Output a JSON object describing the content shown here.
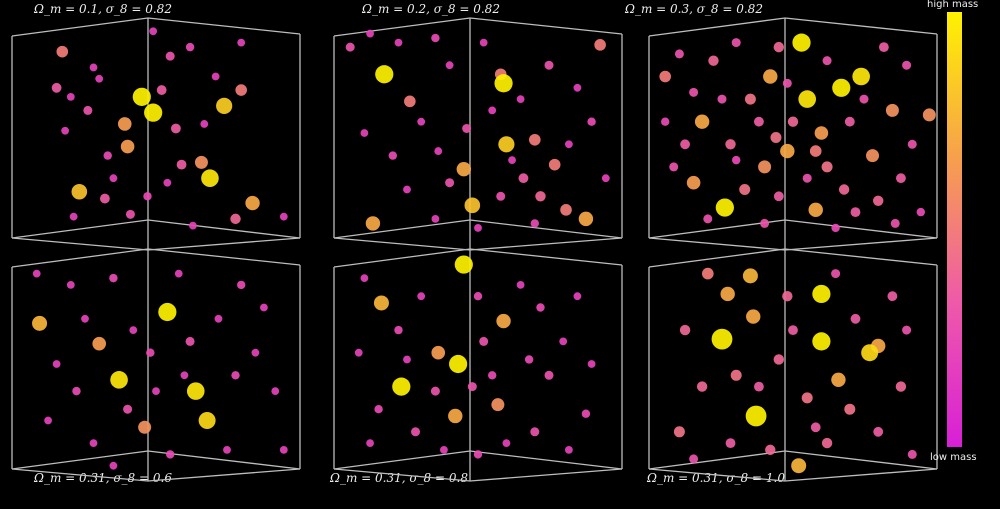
{
  "chart_data": {
    "type": "scatter",
    "subtype": "3d-scatter-grid",
    "grid": false,
    "colorbar": {
      "top_label": "high mass",
      "bottom_label": "low mass",
      "colors": [
        "#d81fd8",
        "#ee5aa8",
        "#f7a04c",
        "#fff200"
      ],
      "placement": "right"
    },
    "panels": [
      {
        "title": "Ω_m = 0.1, σ_8 = 0.82",
        "points": [
          [
            0.17,
            0.14,
            0.5
          ],
          [
            0.28,
            0.21,
            0.2
          ],
          [
            0.15,
            0.3,
            0.35
          ],
          [
            0.2,
            0.34,
            0.2
          ],
          [
            0.26,
            0.4,
            0.3
          ],
          [
            0.18,
            0.49,
            0.2
          ],
          [
            0.45,
            0.34,
            1
          ],
          [
            0.49,
            0.41,
            1
          ],
          [
            0.39,
            0.46,
            0.65
          ],
          [
            0.4,
            0.56,
            0.65
          ],
          [
            0.33,
            0.6,
            0.25
          ],
          [
            0.23,
            0.76,
            0.8
          ],
          [
            0.32,
            0.79,
            0.35
          ],
          [
            0.21,
            0.87,
            0.2
          ],
          [
            0.41,
            0.86,
            0.3
          ],
          [
            0.49,
            0.05,
            0.2
          ],
          [
            0.55,
            0.16,
            0.3
          ],
          [
            0.52,
            0.31,
            0.35
          ],
          [
            0.57,
            0.48,
            0.35
          ],
          [
            0.59,
            0.64,
            0.35
          ],
          [
            0.66,
            0.63,
            0.6
          ],
          [
            0.69,
            0.7,
            0.95
          ],
          [
            0.67,
            0.46,
            0.2
          ],
          [
            0.74,
            0.38,
            0.85
          ],
          [
            0.8,
            0.31,
            0.5
          ],
          [
            0.8,
            0.1,
            0.2
          ],
          [
            0.84,
            0.81,
            0.7
          ],
          [
            0.78,
            0.88,
            0.4
          ],
          [
            0.63,
            0.91,
            0.2
          ],
          [
            0.95,
            0.87,
            0.2
          ],
          [
            0.47,
            0.78,
            0.25
          ],
          [
            0.3,
            0.26,
            0.2
          ],
          [
            0.62,
            0.12,
            0.25
          ],
          [
            0.71,
            0.25,
            0.2
          ],
          [
            0.35,
            0.7,
            0.2
          ],
          [
            0.54,
            0.72,
            0.2
          ]
        ]
      },
      {
        "title": "Ω_m = 0.2, σ_8 = 0.82",
        "points": [
          [
            0.17,
            0.24,
            1
          ],
          [
            0.59,
            0.28,
            1
          ],
          [
            0.6,
            0.55,
            0.85
          ],
          [
            0.48,
            0.82,
            0.8
          ],
          [
            0.88,
            0.88,
            0.7
          ],
          [
            0.13,
            0.9,
            0.7
          ],
          [
            0.45,
            0.66,
            0.7
          ],
          [
            0.26,
            0.36,
            0.5
          ],
          [
            0.93,
            0.11,
            0.5
          ],
          [
            0.58,
            0.24,
            0.5
          ],
          [
            0.7,
            0.53,
            0.5
          ],
          [
            0.77,
            0.64,
            0.5
          ],
          [
            0.81,
            0.84,
            0.5
          ],
          [
            0.05,
            0.12,
            0.3
          ],
          [
            0.12,
            0.06,
            0.2
          ],
          [
            0.22,
            0.1,
            0.2
          ],
          [
            0.35,
            0.08,
            0.25
          ],
          [
            0.4,
            0.2,
            0.2
          ],
          [
            0.3,
            0.45,
            0.2
          ],
          [
            0.1,
            0.5,
            0.2
          ],
          [
            0.2,
            0.6,
            0.25
          ],
          [
            0.36,
            0.58,
            0.2
          ],
          [
            0.25,
            0.75,
            0.2
          ],
          [
            0.4,
            0.72,
            0.3
          ],
          [
            0.55,
            0.4,
            0.2
          ],
          [
            0.65,
            0.35,
            0.2
          ],
          [
            0.75,
            0.2,
            0.3
          ],
          [
            0.85,
            0.3,
            0.2
          ],
          [
            0.9,
            0.45,
            0.25
          ],
          [
            0.82,
            0.55,
            0.2
          ],
          [
            0.66,
            0.7,
            0.35
          ],
          [
            0.58,
            0.78,
            0.3
          ],
          [
            0.7,
            0.9,
            0.25
          ],
          [
            0.5,
            0.92,
            0.2
          ],
          [
            0.35,
            0.88,
            0.2
          ],
          [
            0.95,
            0.7,
            0.2
          ],
          [
            0.52,
            0.1,
            0.2
          ],
          [
            0.46,
            0.48,
            0.3
          ],
          [
            0.62,
            0.62,
            0.2
          ],
          [
            0.72,
            0.78,
            0.4
          ]
        ]
      },
      {
        "title": "Ω_m = 0.3, σ_8 = 0.82",
        "points": [
          [
            0.53,
            0.1,
            1
          ],
          [
            0.67,
            0.3,
            1
          ],
          [
            0.74,
            0.25,
            0.95
          ],
          [
            0.26,
            0.83,
            1
          ],
          [
            0.55,
            0.35,
            0.95
          ],
          [
            0.42,
            0.25,
            0.7
          ],
          [
            0.18,
            0.45,
            0.7
          ],
          [
            0.48,
            0.58,
            0.7
          ],
          [
            0.6,
            0.5,
            0.65
          ],
          [
            0.85,
            0.4,
            0.6
          ],
          [
            0.98,
            0.42,
            0.6
          ],
          [
            0.15,
            0.72,
            0.65
          ],
          [
            0.58,
            0.84,
            0.7
          ],
          [
            0.78,
            0.6,
            0.6
          ],
          [
            0.4,
            0.65,
            0.6
          ],
          [
            0.05,
            0.25,
            0.5
          ],
          [
            0.1,
            0.15,
            0.3
          ],
          [
            0.22,
            0.18,
            0.4
          ],
          [
            0.3,
            0.1,
            0.3
          ],
          [
            0.35,
            0.35,
            0.45
          ],
          [
            0.28,
            0.55,
            0.4
          ],
          [
            0.12,
            0.55,
            0.35
          ],
          [
            0.08,
            0.65,
            0.3
          ],
          [
            0.33,
            0.75,
            0.45
          ],
          [
            0.45,
            0.78,
            0.35
          ],
          [
            0.5,
            0.45,
            0.4
          ],
          [
            0.62,
            0.65,
            0.45
          ],
          [
            0.68,
            0.75,
            0.4
          ],
          [
            0.72,
            0.85,
            0.35
          ],
          [
            0.8,
            0.8,
            0.4
          ],
          [
            0.88,
            0.7,
            0.35
          ],
          [
            0.92,
            0.55,
            0.3
          ],
          [
            0.9,
            0.2,
            0.3
          ],
          [
            0.82,
            0.12,
            0.35
          ],
          [
            0.62,
            0.18,
            0.3
          ],
          [
            0.45,
            0.12,
            0.4
          ],
          [
            0.38,
            0.45,
            0.35
          ],
          [
            0.25,
            0.35,
            0.3
          ],
          [
            0.2,
            0.88,
            0.3
          ],
          [
            0.4,
            0.9,
            0.3
          ],
          [
            0.65,
            0.92,
            0.25
          ],
          [
            0.86,
            0.9,
            0.3
          ],
          [
            0.95,
            0.85,
            0.25
          ],
          [
            0.55,
            0.7,
            0.3
          ],
          [
            0.7,
            0.45,
            0.35
          ],
          [
            0.3,
            0.62,
            0.25
          ],
          [
            0.15,
            0.32,
            0.3
          ],
          [
            0.48,
            0.28,
            0.3
          ],
          [
            0.75,
            0.35,
            0.3
          ],
          [
            0.05,
            0.45,
            0.25
          ],
          [
            0.58,
            0.58,
            0.5
          ],
          [
            0.44,
            0.52,
            0.45
          ]
        ]
      },
      {
        "title": "Ω_m = 0.31, σ_8 = 0.6",
        "points": [
          [
            0.54,
            0.27,
            1
          ],
          [
            0.64,
            0.62,
            0.95
          ],
          [
            0.37,
            0.57,
            0.95
          ],
          [
            0.68,
            0.75,
            0.9
          ],
          [
            0.09,
            0.32,
            0.75
          ],
          [
            0.3,
            0.41,
            0.65
          ],
          [
            0.46,
            0.78,
            0.6
          ],
          [
            0.08,
            0.1,
            0.2
          ],
          [
            0.2,
            0.15,
            0.2
          ],
          [
            0.35,
            0.12,
            0.25
          ],
          [
            0.25,
            0.3,
            0.2
          ],
          [
            0.15,
            0.5,
            0.2
          ],
          [
            0.22,
            0.62,
            0.25
          ],
          [
            0.12,
            0.75,
            0.2
          ],
          [
            0.28,
            0.85,
            0.2
          ],
          [
            0.4,
            0.7,
            0.3
          ],
          [
            0.48,
            0.45,
            0.25
          ],
          [
            0.58,
            0.1,
            0.2
          ],
          [
            0.62,
            0.4,
            0.3
          ],
          [
            0.72,
            0.3,
            0.2
          ],
          [
            0.8,
            0.15,
            0.25
          ],
          [
            0.88,
            0.25,
            0.2
          ],
          [
            0.85,
            0.45,
            0.2
          ],
          [
            0.78,
            0.55,
            0.25
          ],
          [
            0.92,
            0.62,
            0.2
          ],
          [
            0.75,
            0.88,
            0.2
          ],
          [
            0.55,
            0.9,
            0.25
          ],
          [
            0.35,
            0.95,
            0.2
          ],
          [
            0.6,
            0.55,
            0.2
          ],
          [
            0.5,
            0.62,
            0.2
          ],
          [
            0.42,
            0.35,
            0.2
          ],
          [
            0.95,
            0.88,
            0.2
          ]
        ]
      },
      {
        "title": "Ω_m = 0.31, σ_8 = 0.8",
        "points": [
          [
            0.45,
            0.06,
            1
          ],
          [
            0.23,
            0.6,
            1
          ],
          [
            0.43,
            0.5,
            1
          ],
          [
            0.16,
            0.23,
            0.75
          ],
          [
            0.59,
            0.31,
            0.7
          ],
          [
            0.36,
            0.45,
            0.65
          ],
          [
            0.42,
            0.73,
            0.7
          ],
          [
            0.57,
            0.68,
            0.6
          ],
          [
            0.1,
            0.12,
            0.2
          ],
          [
            0.22,
            0.35,
            0.25
          ],
          [
            0.3,
            0.2,
            0.2
          ],
          [
            0.08,
            0.45,
            0.2
          ],
          [
            0.15,
            0.7,
            0.25
          ],
          [
            0.28,
            0.8,
            0.3
          ],
          [
            0.12,
            0.85,
            0.2
          ],
          [
            0.35,
            0.62,
            0.3
          ],
          [
            0.5,
            0.2,
            0.25
          ],
          [
            0.52,
            0.4,
            0.3
          ],
          [
            0.65,
            0.15,
            0.2
          ],
          [
            0.72,
            0.25,
            0.25
          ],
          [
            0.8,
            0.4,
            0.2
          ],
          [
            0.75,
            0.55,
            0.3
          ],
          [
            0.68,
            0.48,
            0.25
          ],
          [
            0.85,
            0.2,
            0.2
          ],
          [
            0.9,
            0.5,
            0.2
          ],
          [
            0.88,
            0.72,
            0.25
          ],
          [
            0.7,
            0.8,
            0.3
          ],
          [
            0.6,
            0.85,
            0.2
          ],
          [
            0.5,
            0.9,
            0.25
          ],
          [
            0.38,
            0.88,
            0.2
          ],
          [
            0.82,
            0.88,
            0.2
          ],
          [
            0.48,
            0.6,
            0.3
          ],
          [
            0.55,
            0.55,
            0.25
          ],
          [
            0.25,
            0.48,
            0.2
          ]
        ]
      },
      {
        "title": "Ω_m = 0.31, σ_8 = 1.0",
        "points": [
          [
            0.25,
            0.39,
            1.2
          ],
          [
            0.37,
            0.73,
            1.2
          ],
          [
            0.6,
            0.19,
            1
          ],
          [
            0.6,
            0.4,
            1
          ],
          [
            0.77,
            0.45,
            0.9
          ],
          [
            0.35,
            0.11,
            0.75
          ],
          [
            0.27,
            0.19,
            0.7
          ],
          [
            0.36,
            0.29,
            0.7
          ],
          [
            0.66,
            0.57,
            0.7
          ],
          [
            0.52,
            0.95,
            0.75
          ],
          [
            0.8,
            0.42,
            0.7
          ],
          [
            0.2,
            0.1,
            0.5
          ],
          [
            0.12,
            0.35,
            0.4
          ],
          [
            0.18,
            0.6,
            0.4
          ],
          [
            0.1,
            0.8,
            0.45
          ],
          [
            0.3,
            0.55,
            0.45
          ],
          [
            0.45,
            0.48,
            0.4
          ],
          [
            0.48,
            0.2,
            0.4
          ],
          [
            0.55,
            0.65,
            0.45
          ],
          [
            0.7,
            0.7,
            0.45
          ],
          [
            0.72,
            0.3,
            0.35
          ],
          [
            0.85,
            0.2,
            0.35
          ],
          [
            0.88,
            0.6,
            0.4
          ],
          [
            0.8,
            0.8,
            0.35
          ],
          [
            0.62,
            0.85,
            0.4
          ],
          [
            0.42,
            0.88,
            0.4
          ],
          [
            0.28,
            0.85,
            0.35
          ],
          [
            0.15,
            0.92,
            0.3
          ],
          [
            0.92,
            0.9,
            0.3
          ],
          [
            0.5,
            0.35,
            0.35
          ],
          [
            0.38,
            0.6,
            0.35
          ],
          [
            0.65,
            0.1,
            0.3
          ],
          [
            0.9,
            0.35,
            0.3
          ],
          [
            0.58,
            0.78,
            0.35
          ]
        ]
      }
    ]
  }
}
